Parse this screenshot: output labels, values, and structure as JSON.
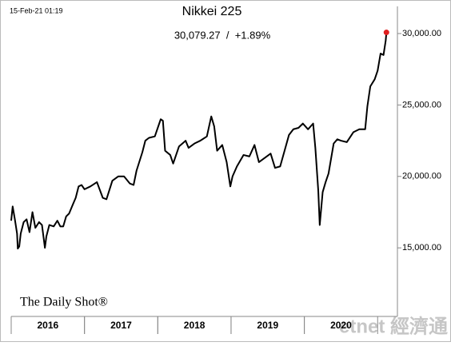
{
  "chart_data": {
    "type": "line",
    "title": "Nikkei 225",
    "timestamp": "15-Feb-21 01:19",
    "annotation": "30,079.27  /  +1.89%",
    "source": "The Daily Shot®",
    "watermark": "etnet 經濟通",
    "year_labels": [
      2016,
      2017,
      2018,
      2019,
      2020
    ],
    "xlim": [
      2016,
      2021.27
    ],
    "ylim": [
      10200,
      31900
    ],
    "yticks": [
      {
        "value": 15000,
        "label": "15,000.00"
      },
      {
        "value": 20000,
        "label": "20,000.00"
      },
      {
        "value": 25000,
        "label": "25,000.00"
      },
      {
        "value": 30000,
        "label": "30,000.00"
      }
    ],
    "last_point_color": "#e02020",
    "series": [
      {
        "name": "Nikkei 225",
        "color": "#000000",
        "x": [
          2016.0,
          2016.02,
          2016.05,
          2016.08,
          2016.09,
          2016.11,
          2016.13,
          2016.17,
          2016.21,
          2016.25,
          2016.29,
          2016.33,
          2016.38,
          2016.42,
          2016.46,
          2016.48,
          2016.52,
          2016.58,
          2016.63,
          2016.67,
          2016.71,
          2016.75,
          2016.79,
          2016.83,
          2016.88,
          2016.92,
          2016.96,
          2017.0,
          2017.08,
          2017.17,
          2017.25,
          2017.3,
          2017.38,
          2017.46,
          2017.54,
          2017.62,
          2017.67,
          2017.71,
          2017.79,
          2017.83,
          2017.88,
          2017.96,
          2018.04,
          2018.07,
          2018.1,
          2018.17,
          2018.21,
          2018.29,
          2018.38,
          2018.42,
          2018.5,
          2018.58,
          2018.67,
          2018.73,
          2018.77,
          2018.81,
          2018.88,
          2018.94,
          2018.99,
          2019.02,
          2019.08,
          2019.17,
          2019.25,
          2019.32,
          2019.38,
          2019.46,
          2019.54,
          2019.6,
          2019.67,
          2019.73,
          2019.79,
          2019.85,
          2019.92,
          2019.98,
          2020.05,
          2020.12,
          2020.15,
          2020.19,
          2020.21,
          2020.25,
          2020.29,
          2020.33,
          2020.4,
          2020.45,
          2020.5,
          2020.58,
          2020.67,
          2020.75,
          2020.83,
          2020.86,
          2020.9,
          2020.96,
          2021.0,
          2021.04,
          2021.08,
          2021.11,
          2021.12
        ],
        "values": [
          16900,
          17900,
          17000,
          16000,
          14950,
          15100,
          16000,
          16800,
          17000,
          16100,
          17500,
          16400,
          16800,
          16600,
          15000,
          15800,
          16600,
          16500,
          16900,
          16500,
          16500,
          17200,
          17400,
          17900,
          18500,
          19300,
          19400,
          19100,
          19300,
          19600,
          18500,
          18400,
          19700,
          20000,
          20000,
          19500,
          19400,
          20400,
          21700,
          22500,
          22700,
          22800,
          24000,
          23900,
          21800,
          21500,
          20900,
          22100,
          22500,
          22000,
          22300,
          22500,
          22800,
          24200,
          23500,
          21800,
          22200,
          21000,
          19300,
          20000,
          20700,
          21500,
          21400,
          22200,
          21000,
          21300,
          21600,
          20600,
          20700,
          21800,
          22900,
          23300,
          23400,
          23700,
          23300,
          23700,
          22000,
          19000,
          16600,
          18900,
          19600,
          20200,
          22300,
          22600,
          22500,
          22400,
          23100,
          23300,
          23300,
          24900,
          26300,
          26800,
          27400,
          28600,
          28500,
          29500,
          30079.27
        ]
      }
    ]
  }
}
